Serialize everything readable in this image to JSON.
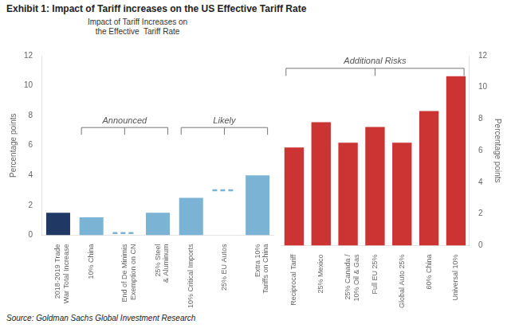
{
  "chart_data": [
    {
      "type": "bar",
      "title": "Exhibit 1: Impact of Tariff increases on the US Effective Tariff Rate",
      "subtitle": "Impact of Tariff Increases on\nthe Effective  Tariff Rate",
      "source": "Source: Goldman Sachs Global Investment Research",
      "ylabel": "Percentage points",
      "categories": [
        "2018-2019 Trade\nWar Total Increase",
        "10% China",
        "End of De Minimis\nExemption on CN",
        "25% Steel\n& Aluminum",
        "10% Critical Imports",
        "25% EU Autos",
        "Extra 10%\nTariffs on China"
      ],
      "series": [
        {
          "type": "bar",
          "colors": [
            "#1f3864",
            "#7ab3d4",
            null,
            "#7ab3d4",
            "#7ab3d4",
            null,
            "#7ab3d4"
          ],
          "values": [
            1.5,
            1.2,
            null,
            1.5,
            2.5,
            null,
            4.0
          ]
        },
        {
          "type": "line",
          "line_style": "dashed",
          "color": "#7ab3d4",
          "values": [
            null,
            null,
            0.15,
            null,
            null,
            3.0,
            null
          ]
        }
      ],
      "ylim": [
        0,
        12
      ],
      "yticks": [
        0,
        2,
        4,
        6,
        8,
        10,
        12
      ],
      "grid": false,
      "annotations": [
        {
          "text": "Announced",
          "from": "10% China",
          "to": "25% Steel\n& Aluminum"
        },
        {
          "text": "Likely",
          "from": "10% Critical Imports",
          "to": "Extra 10%\nTariffs on China"
        }
      ]
    },
    {
      "type": "bar",
      "ylabel": "Percentage points",
      "categories": [
        "Reciprocal Tariff",
        "25% Mexico",
        "25% Canada /\n10% Oil & Gas",
        "Full EU 25%",
        "Global Auto 25%",
        "60% China",
        "Universal 10%"
      ],
      "values": [
        6.2,
        7.8,
        6.5,
        7.5,
        6.5,
        8.5,
        10.7
      ],
      "color": "#cc3333",
      "ylim": [
        0,
        12
      ],
      "yticks": [
        0,
        2,
        4,
        6,
        8,
        10,
        12
      ],
      "grid": false,
      "annotations": [
        {
          "text": "Additional Risks",
          "from": "Reciprocal Tariff",
          "to": "Universal 10%"
        }
      ]
    }
  ]
}
